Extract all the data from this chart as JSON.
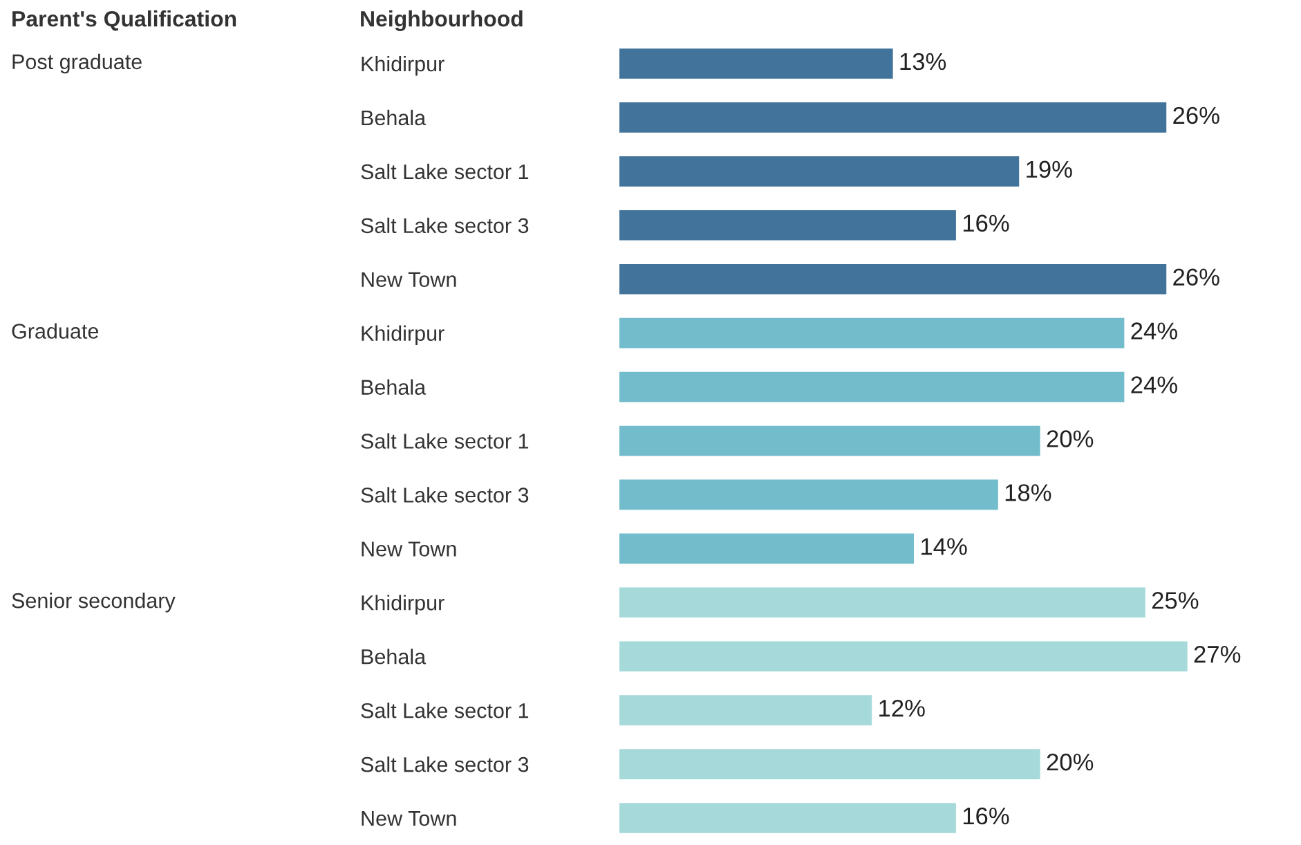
{
  "chart_data": {
    "type": "bar",
    "orientation": "horizontal",
    "legend_title": "Parent's Qualification",
    "ylabel": "Neighbourhood",
    "tick_labels": "y",
    "grid": false,
    "annotations": [
      "Post graduate",
      "Graduate",
      "Senior secondary"
    ],
    "categories": [
      "Khidirpur",
      "Behala",
      "Salt Lake sector 1",
      "Salt Lake sector 3",
      "New Town",
      "Khidirpur",
      "Behala",
      "Salt Lake sector 1",
      "Salt Lake sector 3",
      "New Town",
      "Khidirpur",
      "Behala",
      "Salt Lake sector 1",
      "Salt Lake sector 3",
      "New Town"
    ],
    "series": [
      {
        "color": "#41739b",
        "values": [
          13,
          26,
          19,
          16,
          26,
          null,
          null,
          null,
          null,
          null,
          null,
          null,
          null,
          null,
          null
        ],
        "value_labels": [
          "13%",
          "26%",
          "19%",
          "16%",
          "26%",
          null,
          null,
          null,
          null,
          null,
          null,
          null,
          null,
          null,
          null
        ]
      },
      {
        "color": "#72bccb",
        "values": [
          null,
          null,
          null,
          null,
          null,
          24,
          24,
          20,
          18,
          14,
          null,
          null,
          null,
          null,
          null
        ],
        "value_labels": [
          null,
          null,
          null,
          null,
          null,
          "24%",
          "24%",
          "20%",
          "18%",
          "14%",
          null,
          null,
          null,
          null,
          null
        ]
      },
      {
        "color": "#a6dada",
        "values": [
          null,
          null,
          null,
          null,
          null,
          null,
          null,
          null,
          null,
          null,
          25,
          27,
          12,
          20,
          16
        ],
        "value_labels": [
          null,
          null,
          null,
          null,
          null,
          null,
          null,
          null,
          null,
          null,
          "25%",
          "27%",
          "12%",
          "20%",
          "16%"
        ]
      }
    ]
  }
}
